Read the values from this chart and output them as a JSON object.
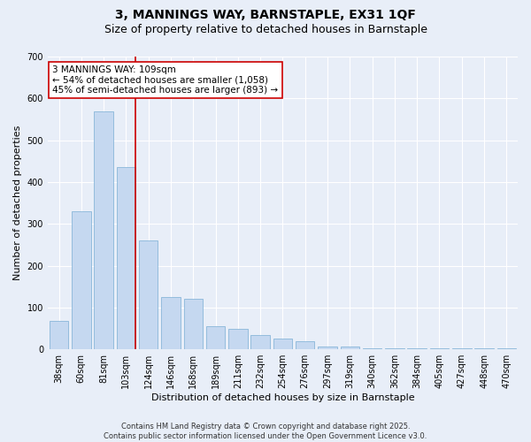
{
  "title_line1": "3, MANNINGS WAY, BARNSTAPLE, EX31 1QF",
  "title_line2": "Size of property relative to detached houses in Barnstaple",
  "xlabel": "Distribution of detached houses by size in Barnstaple",
  "ylabel": "Number of detached properties",
  "categories": [
    "38sqm",
    "60sqm",
    "81sqm",
    "103sqm",
    "124sqm",
    "146sqm",
    "168sqm",
    "189sqm",
    "211sqm",
    "232sqm",
    "254sqm",
    "276sqm",
    "297sqm",
    "319sqm",
    "340sqm",
    "362sqm",
    "384sqm",
    "405sqm",
    "427sqm",
    "448sqm",
    "470sqm"
  ],
  "values": [
    68,
    330,
    570,
    435,
    260,
    125,
    120,
    55,
    50,
    35,
    25,
    20,
    7,
    7,
    3,
    3,
    2,
    2,
    2,
    2,
    3
  ],
  "bar_color": "#c5d8f0",
  "bar_edge_color": "#7aadd4",
  "property_size_index": 3,
  "property_line_color": "#cc0000",
  "annotation_line1": "3 MANNINGS WAY: 109sqm",
  "annotation_line2": "← 54% of detached houses are smaller (1,058)",
  "annotation_line3": "45% of semi-detached houses are larger (893) →",
  "annotation_box_color": "#ffffff",
  "annotation_box_edge_color": "#cc0000",
  "ylim": [
    0,
    700
  ],
  "yticks": [
    0,
    100,
    200,
    300,
    400,
    500,
    600,
    700
  ],
  "background_color": "#e8eef8",
  "footer_text": "Contains HM Land Registry data © Crown copyright and database right 2025.\nContains public sector information licensed under the Open Government Licence v3.0.",
  "title_fontsize": 10,
  "subtitle_fontsize": 9,
  "axis_label_fontsize": 8,
  "tick_fontsize": 7,
  "annotation_fontsize": 7.5,
  "footer_fontsize": 6
}
